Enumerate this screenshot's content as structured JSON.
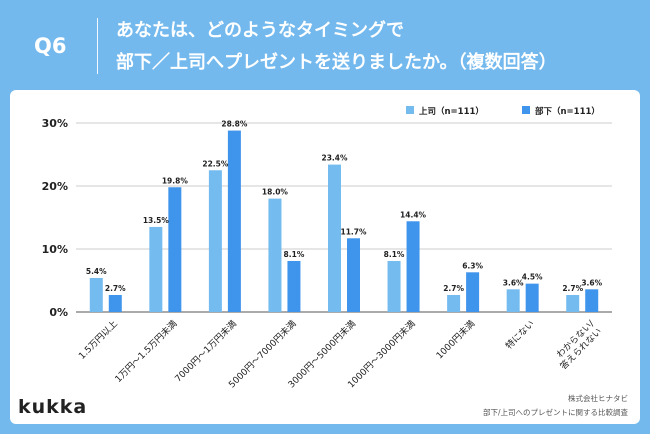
{
  "header": {
    "q": "Q6",
    "title_line1": "あなたは、どのようなタイミングで",
    "title_line2": "部下／上司へプレゼントを送りましたか。（複数回答）"
  },
  "chart_data": {
    "type": "bar",
    "categories": [
      "1.5万円以上",
      "1万円〜1.5万円未満",
      "7000円〜1万円未満",
      "5000円〜7000円未満",
      "3000円〜5000円未満",
      "1000円〜3000円未満",
      "1000円未満",
      "特にない",
      "わからない/答えられない"
    ],
    "series": [
      {
        "name": "上司（n=111）",
        "values": [
          5.4,
          13.5,
          22.5,
          18.0,
          23.4,
          8.1,
          2.7,
          3.6,
          2.7
        ],
        "labels": [
          "5.4%",
          "13.5%",
          "22.5%",
          "18.0%",
          "23.4%",
          "8.1%",
          "2.7%",
          "3.6%",
          "2.7%"
        ],
        "color": "#74bbf0"
      },
      {
        "name": "部下（n=111）",
        "values": [
          2.7,
          19.8,
          28.8,
          8.1,
          11.7,
          14.4,
          6.3,
          4.5,
          3.6
        ],
        "labels": [
          "2.7%",
          "19.8%",
          "28.8%",
          "8.1%",
          "11.7%",
          "14.4%",
          "6.3%",
          "4.5%",
          "3.6%"
        ],
        "color": "#3f94ec"
      }
    ],
    "yticks": [
      "0%",
      "10%",
      "20%",
      "30%"
    ],
    "ylim": [
      0,
      30
    ],
    "legend": "top-right",
    "grid": true
  },
  "footer": {
    "brand": "kukka",
    "source1": "株式会社ヒナタビ",
    "source2": "部下/上司へのプレゼントに関する比較調査"
  }
}
